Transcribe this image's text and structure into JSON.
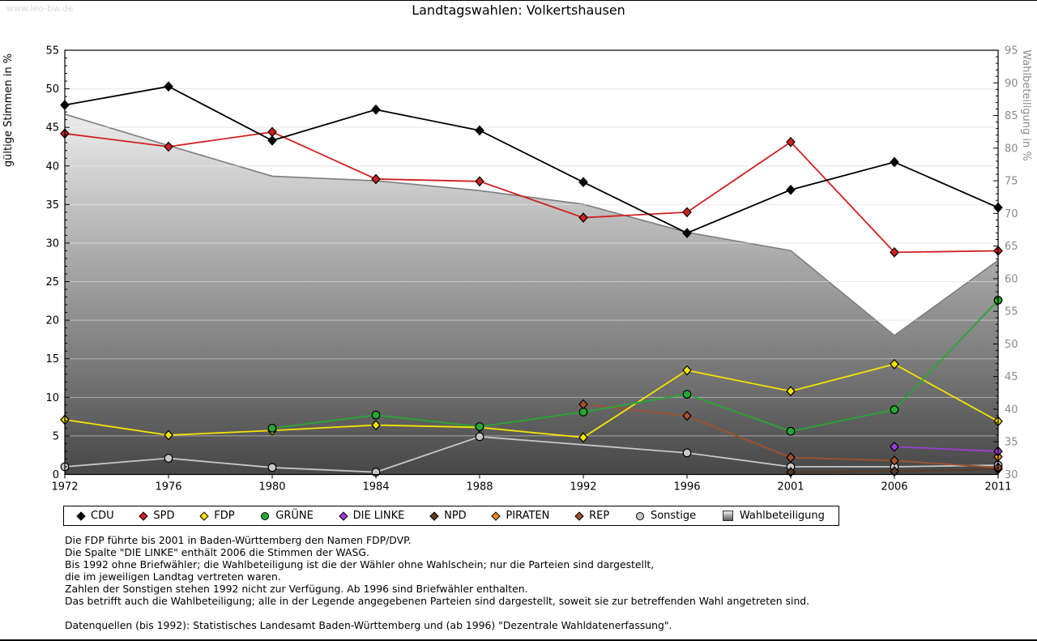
{
  "watermark": "www.leo-bw.de",
  "title": "Landtagswahlen: Volkertshausen",
  "chart_data": {
    "type": "line",
    "title": "Landtagswahlen: Volkertshausen",
    "x": [
      1972,
      1976,
      1980,
      1984,
      1988,
      1992,
      1996,
      2001,
      2006,
      2011
    ],
    "left_axis": {
      "label": "gültige Stimmen in %",
      "min": 0,
      "max": 55,
      "step": 5
    },
    "right_axis": {
      "label": "Wahlbeteiligung in %",
      "min": 30,
      "max": 95,
      "step": 5
    },
    "grid": true,
    "legend_position": "bottom",
    "series": [
      {
        "name": "CDU",
        "color": "#000000",
        "marker": "diamond",
        "axis": "left",
        "points": [
          [
            1972,
            47.9
          ],
          [
            1976,
            50.3
          ],
          [
            1980,
            43.3
          ],
          [
            1984,
            47.3
          ],
          [
            1988,
            44.6
          ],
          [
            1992,
            37.9
          ],
          [
            1996,
            31.3
          ],
          [
            2001,
            36.9
          ],
          [
            2006,
            40.5
          ],
          [
            2011,
            34.6
          ]
        ]
      },
      {
        "name": "SPD",
        "color": "#d01f1f",
        "marker": "diamond",
        "axis": "left",
        "points": [
          [
            1972,
            44.2
          ],
          [
            1976,
            42.5
          ],
          [
            1980,
            44.4
          ],
          [
            1984,
            38.3
          ],
          [
            1988,
            38.0
          ],
          [
            1992,
            33.3
          ],
          [
            1996,
            34.0
          ],
          [
            2001,
            43.1
          ],
          [
            2006,
            28.8
          ],
          [
            2011,
            29.0
          ]
        ]
      },
      {
        "name": "FDP",
        "color": "#f5e400",
        "marker": "diamond",
        "axis": "left",
        "points": [
          [
            1972,
            7.1
          ],
          [
            1976,
            5.1
          ],
          [
            1980,
            5.7
          ],
          [
            1984,
            6.4
          ],
          [
            1988,
            6.1
          ],
          [
            1992,
            4.8
          ],
          [
            1996,
            13.5
          ],
          [
            2001,
            10.8
          ],
          [
            2006,
            14.3
          ],
          [
            2011,
            6.9
          ]
        ]
      },
      {
        "name": "GRÜNE",
        "color": "#26a832",
        "marker": "circle",
        "axis": "left",
        "points": [
          [
            1980,
            6.0
          ],
          [
            1984,
            7.7
          ],
          [
            1988,
            6.2
          ],
          [
            1992,
            8.1
          ],
          [
            1996,
            10.4
          ],
          [
            2001,
            5.6
          ],
          [
            2006,
            8.4
          ],
          [
            2011,
            22.6
          ]
        ]
      },
      {
        "name": "DIE LINKE",
        "color": "#9b3fd1",
        "marker": "diamond",
        "axis": "left",
        "points": [
          [
            2006,
            3.6
          ],
          [
            2011,
            3.0
          ]
        ]
      },
      {
        "name": "NPD",
        "color": "#5a3a22",
        "marker": "diamond",
        "axis": "left",
        "points": [
          [
            2001,
            0.3
          ],
          [
            2006,
            0.4
          ],
          [
            2011,
            0.7
          ]
        ]
      },
      {
        "name": "PIRATEN",
        "color": "#e88f20",
        "marker": "diamond",
        "axis": "left",
        "points": [
          [
            2011,
            2.3
          ]
        ]
      },
      {
        "name": "REP",
        "color": "#a0522d",
        "marker": "diamond",
        "axis": "left",
        "points": [
          [
            1992,
            9.1
          ],
          [
            1996,
            7.6
          ],
          [
            2001,
            2.2
          ],
          [
            2006,
            1.8
          ],
          [
            2011,
            0.9
          ]
        ]
      },
      {
        "name": "Sonstige",
        "color": "#c8c8c8",
        "marker": "circle",
        "axis": "left",
        "points": [
          [
            1972,
            1.0
          ],
          [
            1976,
            2.1
          ],
          [
            1980,
            0.9
          ],
          [
            1984,
            0.3
          ],
          [
            1988,
            4.9
          ],
          [
            1996,
            2.8
          ],
          [
            2001,
            1.0
          ],
          [
            2006,
            1.0
          ],
          [
            2011,
            1.2
          ]
        ]
      },
      {
        "name": "Wahlbeteiligung",
        "color": "#b0b0b0",
        "marker": "gradient-square",
        "axis": "right",
        "style": "area",
        "points": [
          [
            1972,
            85.2
          ],
          [
            1976,
            80.4
          ],
          [
            1980,
            75.7
          ],
          [
            1984,
            75.0
          ],
          [
            1988,
            73.5
          ],
          [
            1992,
            71.4
          ],
          [
            1996,
            67.1
          ],
          [
            2001,
            64.3
          ],
          [
            2006,
            51.3
          ],
          [
            2011,
            62.8
          ]
        ]
      }
    ]
  },
  "footnotes": {
    "lines": [
      "Die FDP führte bis 2001 in Baden-Württemberg den Namen FDP/DVP.",
      "Die Spalte \"DIE LINKE\" enthält 2006 die Stimmen der WASG.",
      "Bis 1992 ohne Briefwähler; die Wahlbeteiligung ist die der Wähler ohne Wahlschein; nur die Parteien sind dargestellt,",
      "die im jeweiligen Landtag vertreten waren.",
      "Zahlen der Sonstigen stehen 1992 nicht zur Verfügung. Ab 1996 sind Briefwähler enthalten.",
      "Das betrifft auch die Wahlbeteiligung; alle in der Legende angegebenen Parteien sind dargestellt, soweit sie zur betreffenden Wahl angetreten sind.",
      "",
      "Datenquellen (bis 1992): Statistisches Landesamt Baden-Württemberg und (ab 1996) \"Dezentrale Wahldatenerfassung\"."
    ]
  }
}
